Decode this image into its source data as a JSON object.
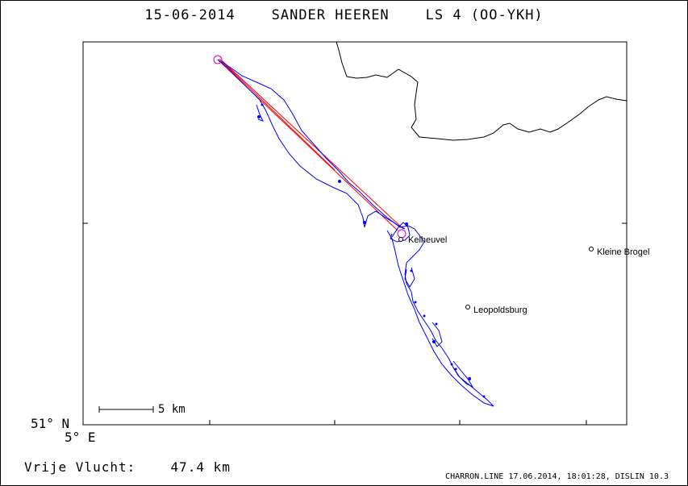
{
  "title": "15-06-2014    SANDER HEEREN    LS 4 (OO-YKH)",
  "places": [
    {
      "name": "Kelheuvel"
    },
    {
      "name": "Kleine Brogel"
    },
    {
      "name": "Leopoldsburg"
    }
  ],
  "scale_bar": {
    "label": "5 km"
  },
  "coords": {
    "lat": "51° N",
    "lon": "5° E"
  },
  "footer": {
    "flight_label": "Vrije Vlucht:",
    "distance": "47.4 km",
    "credit": "CHARRON.LINE 17.06.2014, 18:01:28, DISLIN 10.3"
  },
  "colors": {
    "track": "#0000ff",
    "task": "#ff0000",
    "start_marker": "#cc00cc",
    "border": "#000000"
  }
}
